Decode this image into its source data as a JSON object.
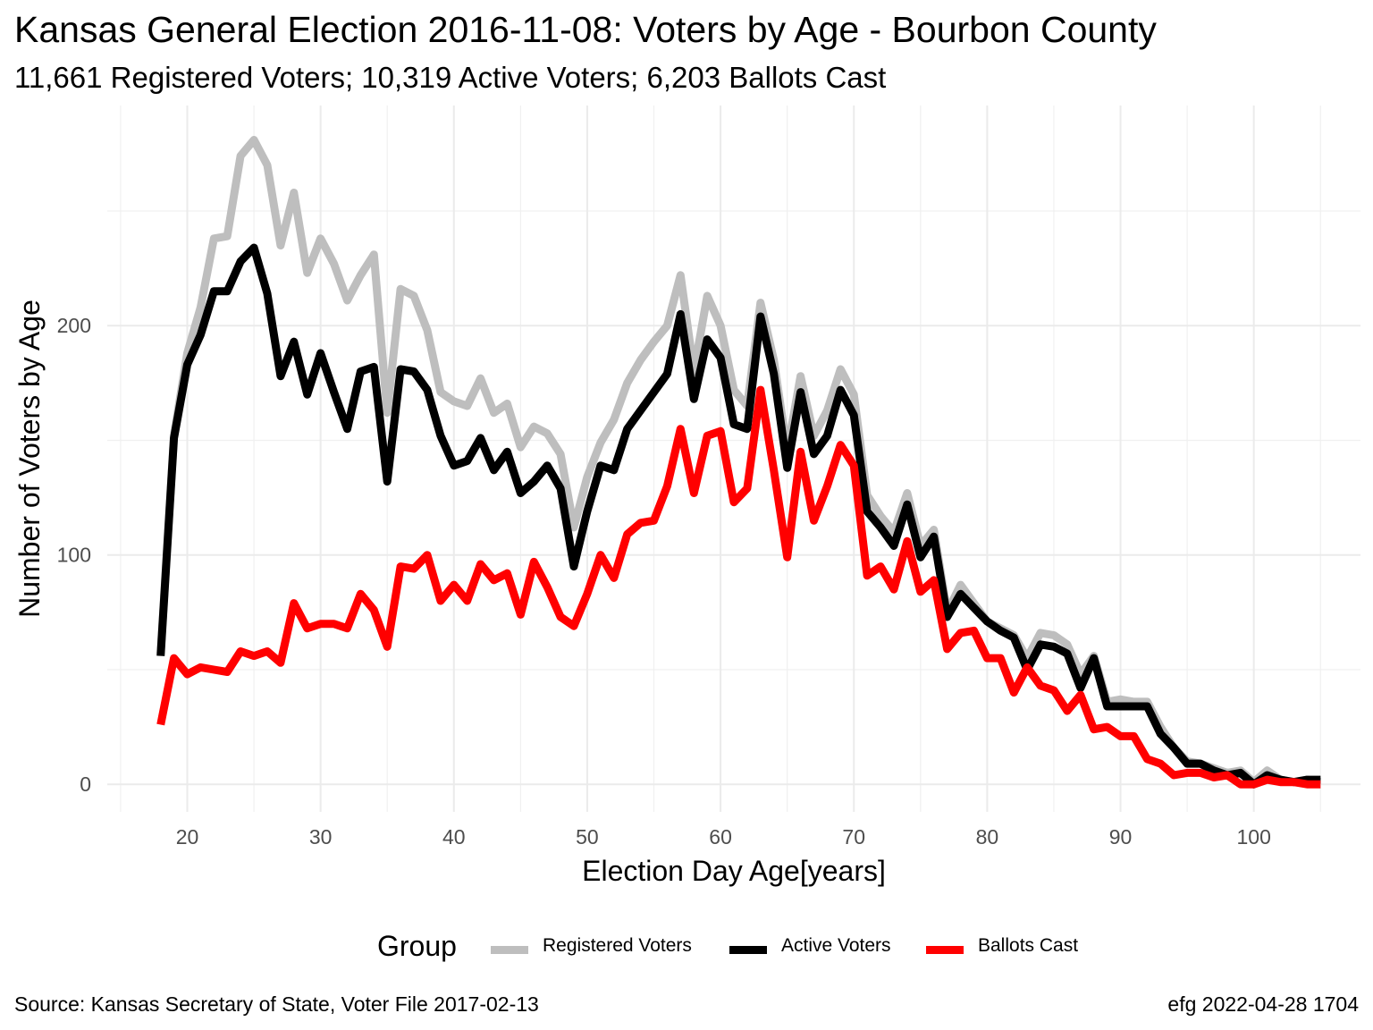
{
  "header": {
    "title": "Kansas General Election 2016-11-08:  Voters by Age - Bourbon County",
    "subtitle": "11,661 Registered Voters; 10,319 Active Voters; 6,203 Ballots Cast"
  },
  "caption": {
    "source": "Source:  Kansas Secretary of State, Voter File  2017-02-13",
    "credit": "efg 2022-04-28 1704"
  },
  "legend": {
    "title": "Group",
    "placement": "bottom"
  },
  "chart_data": {
    "type": "line",
    "xlabel": "Election Day Age[years]",
    "ylabel": "Number of Voters by Age",
    "xlim": [
      14,
      108
    ],
    "ylim": [
      -12,
      296
    ],
    "x_ticks": [
      20,
      30,
      40,
      50,
      60,
      70,
      80,
      90,
      100
    ],
    "y_ticks": [
      0,
      100,
      200
    ],
    "grid": true,
    "x": [
      18,
      19,
      20,
      21,
      22,
      23,
      24,
      25,
      26,
      27,
      28,
      29,
      30,
      31,
      32,
      33,
      34,
      35,
      36,
      37,
      38,
      39,
      40,
      41,
      42,
      43,
      44,
      45,
      46,
      47,
      48,
      49,
      50,
      51,
      52,
      53,
      54,
      55,
      56,
      57,
      58,
      59,
      60,
      61,
      62,
      63,
      64,
      65,
      66,
      67,
      68,
      69,
      70,
      71,
      72,
      73,
      74,
      75,
      76,
      77,
      78,
      79,
      80,
      81,
      82,
      83,
      84,
      85,
      86,
      87,
      88,
      89,
      90,
      91,
      92,
      93,
      94,
      95,
      96,
      97,
      98,
      99,
      100,
      101,
      102,
      103,
      104,
      105
    ],
    "series": [
      {
        "name": "Registered Voters",
        "color": "#bebebe",
        "values": [
          57,
          152,
          188,
          208,
          238,
          239,
          274,
          281,
          270,
          235,
          258,
          223,
          238,
          227,
          211,
          222,
          231,
          162,
          216,
          213,
          198,
          171,
          167,
          165,
          177,
          162,
          166,
          147,
          156,
          153,
          144,
          112,
          134,
          149,
          159,
          175,
          185,
          193,
          200,
          222,
          180,
          213,
          200,
          172,
          165,
          210,
          185,
          145,
          178,
          152,
          163,
          181,
          170,
          126,
          117,
          110,
          127,
          104,
          111,
          75,
          87,
          79,
          71,
          68,
          65,
          55,
          66,
          65,
          61,
          48,
          56,
          36,
          37,
          36,
          36,
          25,
          16,
          10,
          9,
          7,
          5,
          6,
          1,
          6,
          2,
          1,
          2,
          1
        ]
      },
      {
        "name": "Active Voters",
        "color": "#000000",
        "values": [
          56,
          151,
          183,
          196,
          215,
          215,
          228,
          234,
          214,
          178,
          193,
          170,
          188,
          171,
          155,
          180,
          182,
          132,
          181,
          180,
          172,
          152,
          139,
          141,
          151,
          137,
          145,
          127,
          132,
          139,
          129,
          95,
          119,
          139,
          137,
          155,
          163,
          171,
          179,
          205,
          168,
          194,
          186,
          157,
          155,
          204,
          179,
          138,
          171,
          144,
          152,
          172,
          161,
          119,
          112,
          104,
          122,
          99,
          108,
          73,
          83,
          77,
          71,
          67,
          64,
          50,
          61,
          60,
          57,
          42,
          55,
          34,
          34,
          34,
          34,
          22,
          16,
          9,
          9,
          6,
          4,
          5,
          0,
          4,
          2,
          1,
          2,
          2
        ]
      },
      {
        "name": "Ballots Cast",
        "color": "#ff0000",
        "values": [
          26,
          55,
          48,
          51,
          50,
          49,
          58,
          56,
          58,
          53,
          79,
          68,
          70,
          70,
          68,
          83,
          76,
          60,
          95,
          94,
          100,
          80,
          87,
          80,
          96,
          89,
          92,
          74,
          97,
          86,
          73,
          69,
          83,
          100,
          90,
          109,
          114,
          115,
          130,
          155,
          127,
          152,
          154,
          123,
          129,
          172,
          137,
          99,
          145,
          115,
          130,
          148,
          139,
          91,
          95,
          85,
          106,
          84,
          89,
          59,
          66,
          67,
          55,
          55,
          40,
          51,
          43,
          41,
          32,
          39,
          24,
          25,
          21,
          21,
          11,
          9,
          4,
          5,
          5,
          3,
          4,
          0,
          0,
          2,
          1,
          1,
          0,
          0
        ]
      }
    ]
  }
}
